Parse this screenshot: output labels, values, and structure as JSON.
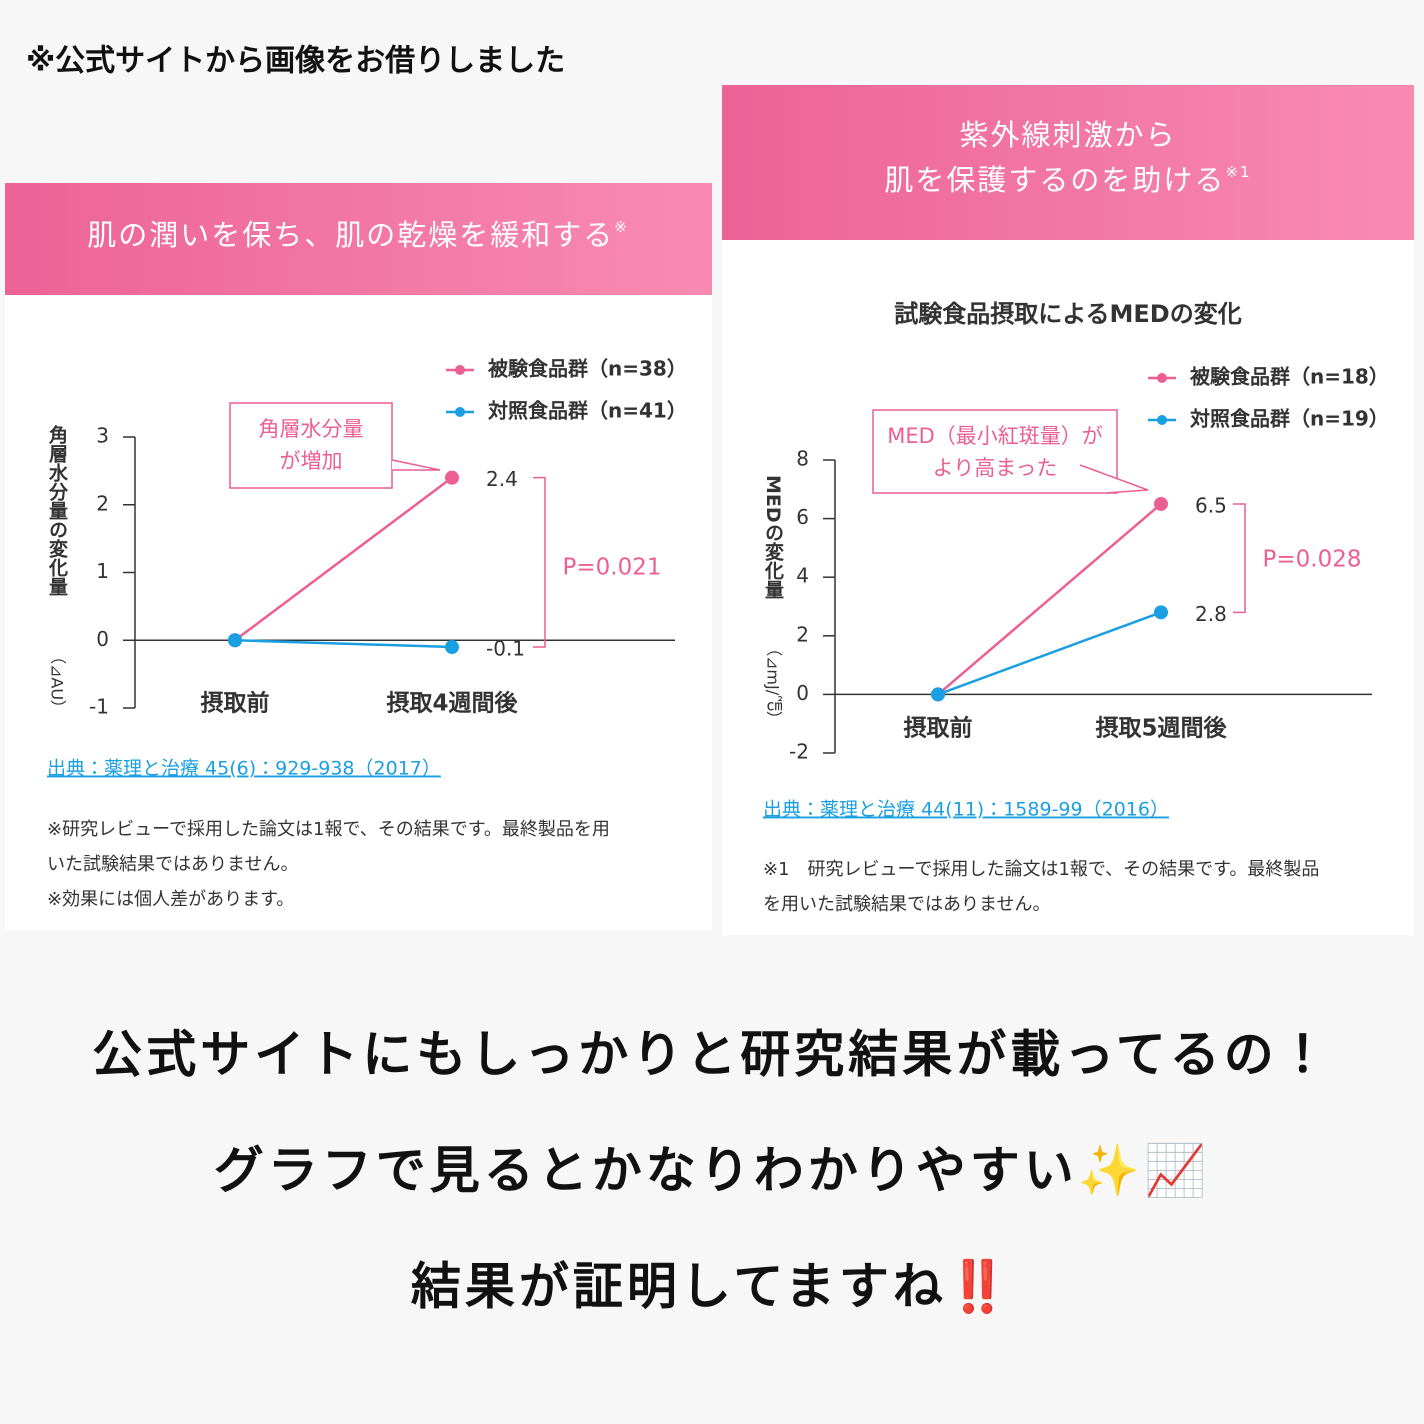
{
  "note_top": "※公式サイトから画像をお借りしました",
  "chart_data": [
    {
      "type": "line",
      "banner": [
        "肌の潤いを保ち、肌の乾燥を緩和する"
      ],
      "banner_mark": "※",
      "ylabel": "角層水分量の変化量",
      "yunit": "（⊿AU）",
      "categories": [
        "摂取前",
        "摂取4週間後"
      ],
      "series": [
        {
          "name": "被験食品群（n=38）",
          "color": "#ec5f93",
          "values": [
            0,
            2.4
          ]
        },
        {
          "name": "対照食品群（n=41）",
          "color": "#1a9fe3",
          "values": [
            0,
            -0.1
          ]
        }
      ],
      "ylim": [
        -1,
        3
      ],
      "yticks": [
        -1,
        0,
        1,
        2,
        3
      ],
      "callout": [
        "角層水分量",
        "が増加"
      ],
      "p_value": "P=0.021",
      "source": "出典：薬理と治療 45(6)：929-938（2017）",
      "notes": [
        "※研究レビューで採用した論文は1報で、その結果です。最終製品を用",
        "いた試験結果ではありません。",
        "※効果には個人差があります。"
      ]
    },
    {
      "type": "line",
      "banner": [
        "紫外線刺激から",
        "肌を保護するのを助ける"
      ],
      "banner_mark": "※1",
      "title": "試験食品摂取によるMEDの変化",
      "ylabel": "MEDの変化量",
      "yunit": "（⊿mJ/㎠）",
      "categories": [
        "摂取前",
        "摂取5週間後"
      ],
      "series": [
        {
          "name": "被験食品群（n=18）",
          "color": "#ec5f93",
          "values": [
            0,
            6.5
          ]
        },
        {
          "name": "対照食品群（n=19）",
          "color": "#1a9fe3",
          "values": [
            0,
            2.8
          ]
        }
      ],
      "ylim": [
        -2,
        8
      ],
      "yticks": [
        -2,
        0,
        2,
        4,
        6,
        8
      ],
      "callout": [
        "MED（最小紅斑量）が",
        "より高まった"
      ],
      "p_value": "P=0.028",
      "source": "出典：薬理と治療 44(11)：1589-99（2016）",
      "notes": [
        "※1　研究レビューで採用した論文は1報で、その結果です。最終製品",
        "を用いた試験結果ではありません。"
      ]
    }
  ],
  "message": [
    "公式サイトにもしっかりと研究結果が載ってるの！",
    "グラフで見るとかなりわかりやすい✨📈",
    "結果が証明してますね‼️"
  ]
}
